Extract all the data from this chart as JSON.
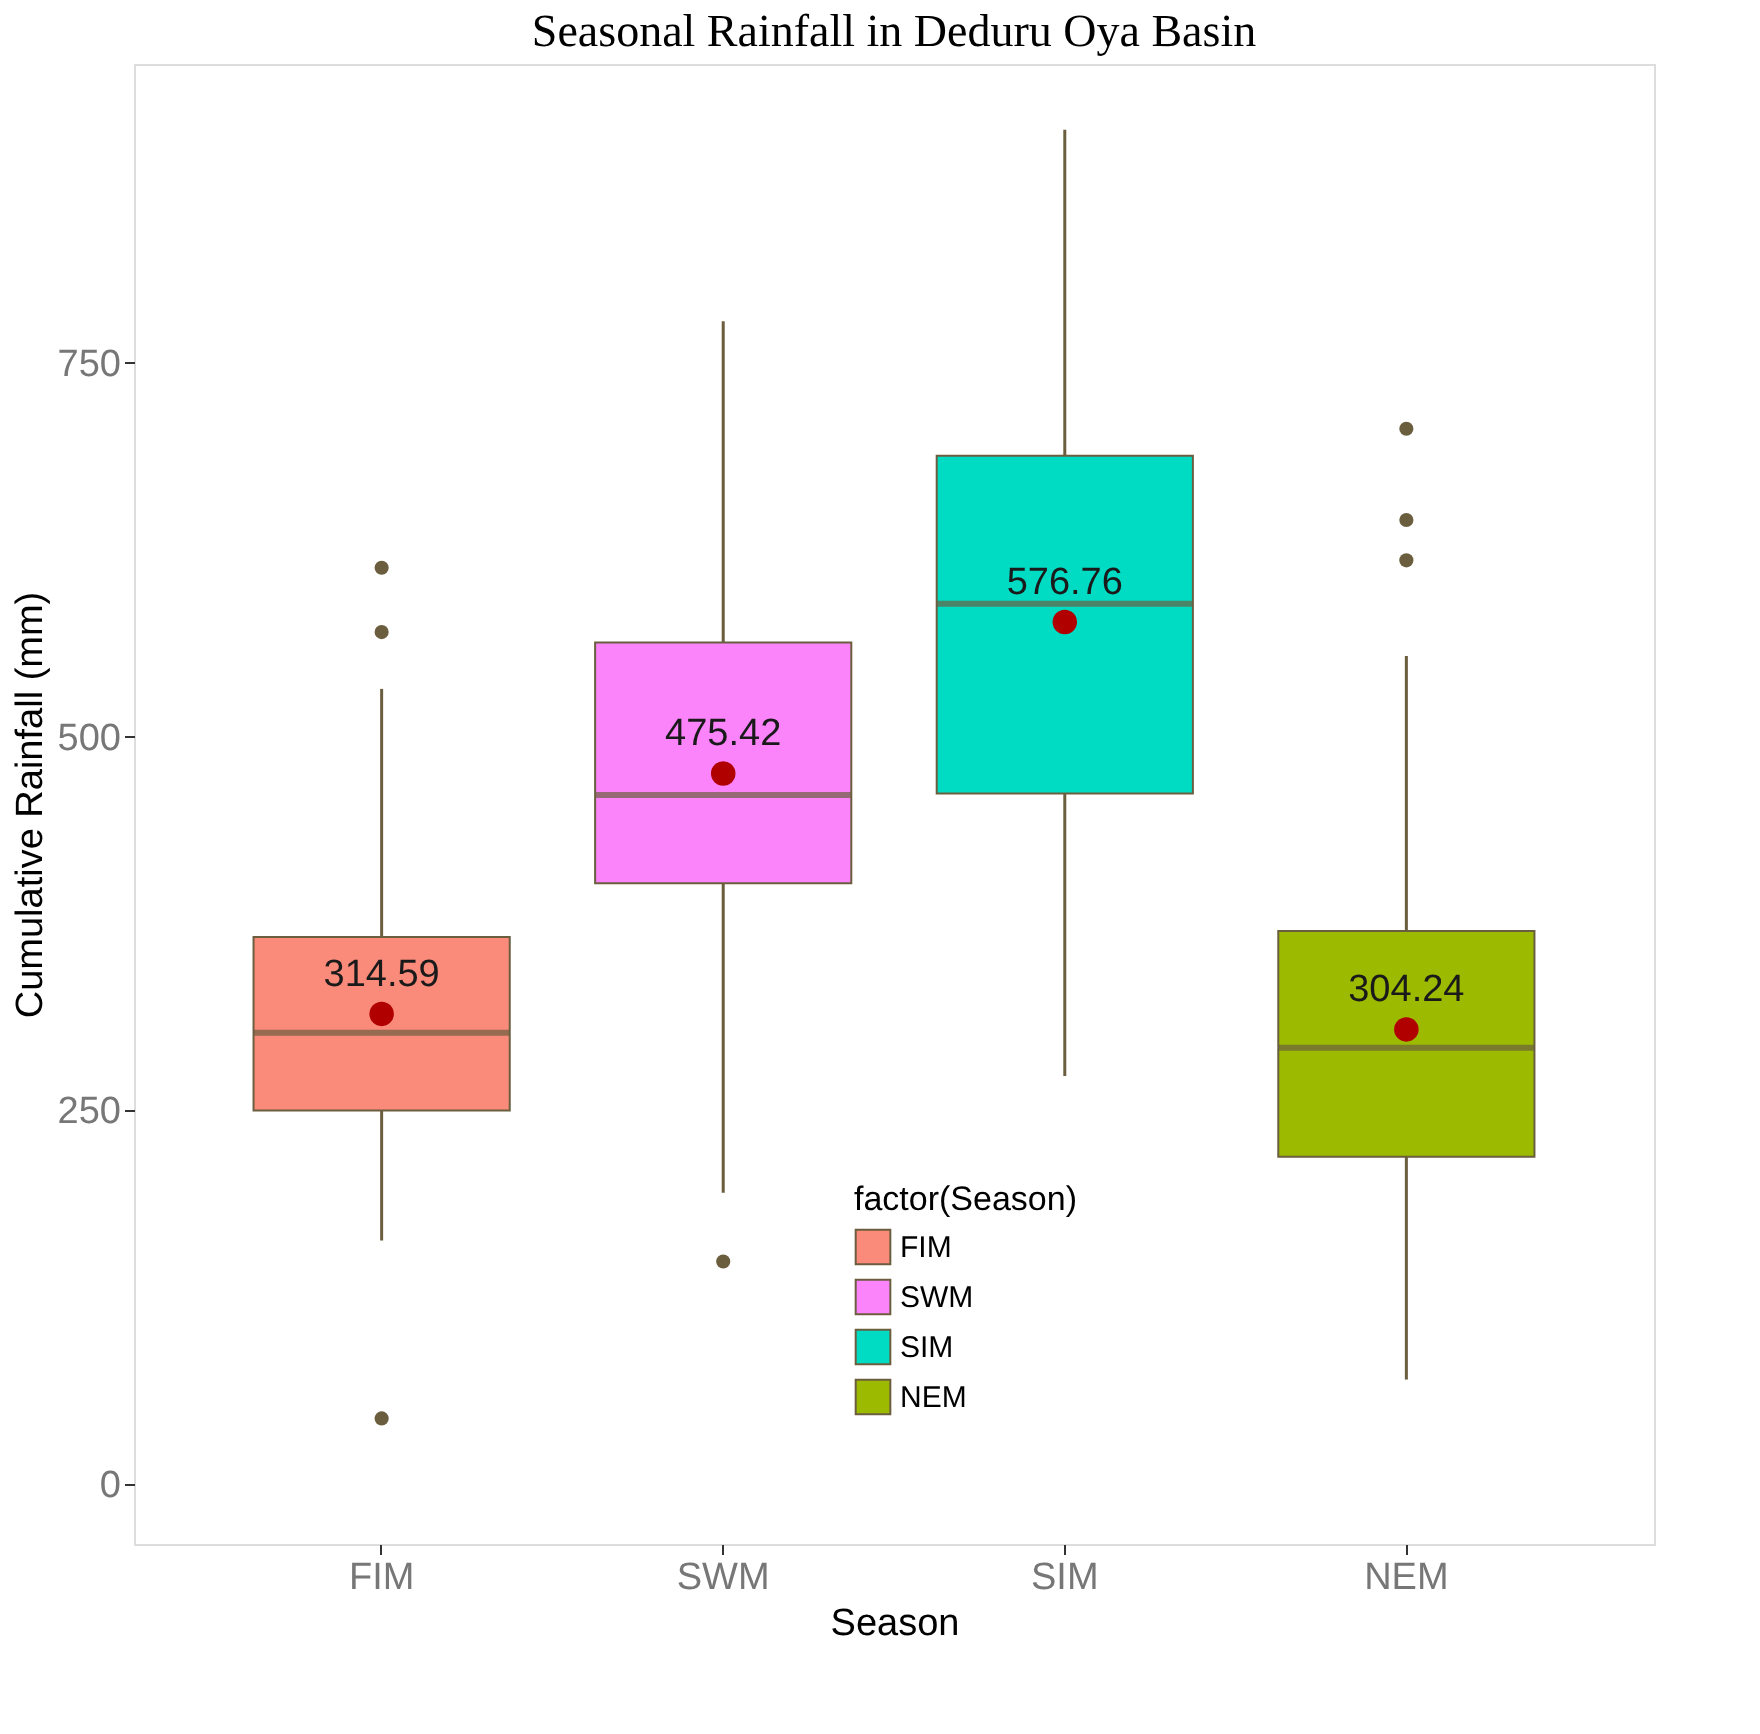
{
  "chart_data": {
    "type": "box",
    "title": "Seasonal Rainfall in Deduru Oya Basin",
    "xlabel": "Season",
    "ylabel": "Cumulative Rainfall (mm)",
    "legend_title": "factor(Season)",
    "legend": "bottom",
    "grid": false,
    "annotations": [
      "314.59",
      "475.42",
      "576.76",
      "304.24"
    ],
    "categories": [
      "FIM",
      "SWM",
      "SIM",
      "NEM"
    ],
    "ylim": [
      -40,
      950
    ],
    "yticks": [
      0,
      250,
      500,
      750
    ],
    "series": [
      {
        "name": "FIM",
        "color": "#fa8b7b",
        "boxes": [
          {
            "low": 163,
            "q1": 250,
            "median": 302,
            "q3": 366,
            "high": 532,
            "mean": 314.59,
            "outliers": [
              613,
              570,
              44
            ]
          },
          null,
          null,
          null
        ]
      },
      {
        "name": "SWM",
        "color": "#fb84fb",
        "boxes": [
          null,
          {
            "low": 195,
            "q1": 402,
            "median": 461,
            "q3": 563,
            "high": 778,
            "mean": 475.42,
            "outliers": [
              149
            ]
          },
          null,
          null
        ]
      },
      {
        "name": "SIM",
        "color": "#00dcc4",
        "boxes": [
          null,
          null,
          {
            "low": 273,
            "q1": 462,
            "median": 589,
            "q3": 688,
            "high": 906,
            "mean": 576.76
          },
          null
        ]
      },
      {
        "name": "NEM",
        "color": "#9cbb00",
        "boxes": [
          null,
          null,
          null,
          {
            "low": 70,
            "q1": 219,
            "median": 292,
            "q3": 370,
            "high": 554,
            "mean": 304.24,
            "outliers": [
              706,
              645,
              618
            ]
          }
        ]
      }
    ]
  }
}
